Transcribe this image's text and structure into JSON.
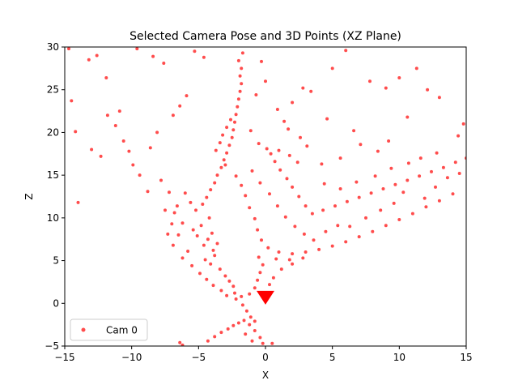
{
  "chart_data": {
    "type": "scatter",
    "title": "Selected Camera Pose and 3D Points (XZ Plane)",
    "xlabel": "X",
    "ylabel": "Z",
    "xlim": [
      -15,
      15
    ],
    "ylim": [
      -5,
      30
    ],
    "xticks": [
      -15,
      -10,
      -5,
      0,
      5,
      10,
      15
    ],
    "yticks": [
      -5,
      0,
      5,
      10,
      15,
      20,
      25,
      30
    ],
    "grid": false,
    "legend_position": "lower-left",
    "series": [
      {
        "name": "Cam 0",
        "color": "#ff0000",
        "marker": "point",
        "points": [
          [
            -4.3,
            7.5
          ],
          [
            -4.0,
            8.2
          ],
          [
            -4.6,
            6.8
          ],
          [
            -3.9,
            6.2
          ],
          [
            -4.8,
            9.1
          ],
          [
            -4.2,
            10.0
          ],
          [
            -3.8,
            5.6
          ],
          [
            -5.1,
            7.9
          ],
          [
            -4.5,
            5.1
          ],
          [
            -3.6,
            7.0
          ],
          [
            -5.4,
            8.6
          ],
          [
            -4.1,
            4.6
          ],
          [
            -3.4,
            4.0
          ],
          [
            -3.0,
            3.2
          ],
          [
            -2.7,
            2.6
          ],
          [
            -2.4,
            2.0
          ],
          [
            -6.2,
            9.4
          ],
          [
            -6.5,
            8.0
          ],
          [
            -5.8,
            6.1
          ],
          [
            -6.8,
            10.6
          ],
          [
            -5.2,
            10.9
          ],
          [
            -4.7,
            11.6
          ],
          [
            -4.4,
            12.4
          ],
          [
            -4.1,
            13.3
          ],
          [
            -3.8,
            14.1
          ],
          [
            -3.6,
            15.0
          ],
          [
            -3.3,
            15.9
          ],
          [
            -3.1,
            16.8
          ],
          [
            -2.9,
            17.6
          ],
          [
            -2.7,
            18.5
          ],
          [
            -2.5,
            19.4
          ],
          [
            -2.4,
            20.3
          ],
          [
            -2.3,
            21.2
          ],
          [
            -2.2,
            22.1
          ],
          [
            -2.1,
            23.0
          ],
          [
            -2.0,
            23.9
          ],
          [
            -1.9,
            24.8
          ],
          [
            -1.8,
            25.7
          ],
          [
            -1.9,
            26.6
          ],
          [
            -1.8,
            27.5
          ],
          [
            -2.0,
            28.4
          ],
          [
            -1.7,
            29.3
          ],
          [
            -2.6,
            21.5
          ],
          [
            -2.9,
            20.6
          ],
          [
            -3.2,
            19.7
          ],
          [
            -3.4,
            18.8
          ],
          [
            -3.7,
            17.9
          ],
          [
            -3.0,
            16.2
          ],
          [
            -2.2,
            14.9
          ],
          [
            -1.8,
            13.8
          ],
          [
            -1.5,
            12.6
          ],
          [
            -1.2,
            11.2
          ],
          [
            -0.8,
            9.9
          ],
          [
            -0.6,
            8.6
          ],
          [
            -0.3,
            7.4
          ],
          [
            0.2,
            6.5
          ],
          [
            1.0,
            6.0
          ],
          [
            2.0,
            5.8
          ],
          [
            3.0,
            6.0
          ],
          [
            4.0,
            6.3
          ],
          [
            5.0,
            6.7
          ],
          [
            6.0,
            7.2
          ],
          [
            7.0,
            7.8
          ],
          [
            8.0,
            8.4
          ],
          [
            9.0,
            9.1
          ],
          [
            10.0,
            9.8
          ],
          [
            11.0,
            10.5
          ],
          [
            12.0,
            11.3
          ],
          [
            13.0,
            12.0
          ],
          [
            14.0,
            12.8
          ],
          [
            -0.5,
            5.4
          ],
          [
            0.8,
            5.2
          ],
          [
            1.8,
            5.1
          ],
          [
            2.8,
            5.3
          ],
          [
            3.5,
            10.5
          ],
          [
            4.3,
            10.9
          ],
          [
            5.2,
            11.4
          ],
          [
            6.1,
            11.9
          ],
          [
            7.0,
            12.4
          ],
          [
            7.9,
            12.9
          ],
          [
            8.8,
            13.4
          ],
          [
            9.7,
            13.9
          ],
          [
            10.6,
            14.4
          ],
          [
            11.5,
            14.9
          ],
          [
            12.4,
            15.4
          ],
          [
            13.3,
            15.9
          ],
          [
            14.2,
            16.5
          ],
          [
            15.0,
            17.0
          ],
          [
            3.0,
            11.4
          ],
          [
            2.5,
            12.5
          ],
          [
            2.0,
            13.6
          ],
          [
            1.6,
            14.6
          ],
          [
            1.1,
            15.6
          ],
          [
            0.7,
            16.6
          ],
          [
            0.4,
            17.5
          ],
          [
            1.0,
            17.9
          ],
          [
            1.8,
            17.3
          ],
          [
            2.4,
            16.5
          ],
          [
            0.1,
            18.1
          ],
          [
            -0.5,
            18.7
          ],
          [
            -1.1,
            20.2
          ],
          [
            -0.2,
            4.5
          ],
          [
            -0.4,
            3.6
          ],
          [
            -0.6,
            2.7
          ],
          [
            -0.8,
            1.8
          ],
          [
            -1.2,
            1.1
          ],
          [
            -1.8,
            0.8
          ],
          [
            -2.3,
            1.2
          ],
          [
            0.3,
            2.2
          ],
          [
            0.6,
            3.0
          ],
          [
            1.2,
            4.0
          ],
          [
            2.0,
            4.6
          ],
          [
            -2.4,
            -2.6
          ],
          [
            -2.0,
            -2.3
          ],
          [
            -1.6,
            -2.0
          ],
          [
            -1.2,
            -2.5
          ],
          [
            -2.8,
            -3.0
          ],
          [
            -3.3,
            -3.4
          ],
          [
            -3.8,
            -3.9
          ],
          [
            -4.3,
            -4.4
          ],
          [
            -0.8,
            -3.2
          ],
          [
            -0.4,
            -4.0
          ],
          [
            -0.2,
            -4.7
          ],
          [
            -6.4,
            -4.6
          ],
          [
            -6.2,
            -4.9
          ],
          [
            -1.5,
            -3.6
          ],
          [
            0.5,
            -4.7
          ],
          [
            -1.0,
            -4.4
          ],
          [
            -14.5,
            23.7
          ],
          [
            -14.2,
            20.1
          ],
          [
            -13.0,
            18.0
          ],
          [
            -12.3,
            17.2
          ],
          [
            -11.8,
            22.0
          ],
          [
            -11.2,
            20.8
          ],
          [
            -10.9,
            22.5
          ],
          [
            -10.6,
            19.0
          ],
          [
            -10.2,
            17.8
          ],
          [
            -9.9,
            16.2
          ],
          [
            -9.4,
            15.0
          ],
          [
            -8.6,
            18.2
          ],
          [
            -8.1,
            20.0
          ],
          [
            -7.8,
            14.4
          ],
          [
            -7.2,
            13.0
          ],
          [
            -6.9,
            22.0
          ],
          [
            -6.4,
            23.1
          ],
          [
            -5.9,
            24.3
          ],
          [
            -14.7,
            29.8
          ],
          [
            -13.2,
            28.5
          ],
          [
            -12.6,
            29.0
          ],
          [
            -11.9,
            26.4
          ],
          [
            -9.6,
            29.8
          ],
          [
            -8.4,
            28.9
          ],
          [
            -7.6,
            28.1
          ],
          [
            -5.3,
            29.5
          ],
          [
            -4.6,
            28.8
          ],
          [
            -14.0,
            11.8
          ],
          [
            -8.8,
            13.1
          ],
          [
            -7.5,
            10.9
          ],
          [
            5.0,
            27.5
          ],
          [
            6.0,
            29.6
          ],
          [
            7.8,
            26.0
          ],
          [
            9.0,
            25.2
          ],
          [
            10.0,
            26.4
          ],
          [
            11.3,
            27.5
          ],
          [
            12.1,
            25.0
          ],
          [
            13.0,
            24.1
          ],
          [
            14.8,
            21.0
          ],
          [
            14.4,
            19.6
          ],
          [
            10.6,
            21.8
          ],
          [
            9.2,
            19.0
          ],
          [
            8.4,
            17.8
          ],
          [
            7.1,
            18.6
          ],
          [
            6.6,
            20.2
          ],
          [
            5.6,
            17.0
          ],
          [
            4.6,
            21.6
          ],
          [
            3.4,
            24.8
          ],
          [
            2.8,
            25.2
          ],
          [
            2.0,
            23.5
          ],
          [
            1.4,
            21.3
          ],
          [
            -0.7,
            24.4
          ],
          [
            -0.3,
            28.3
          ],
          [
            0.0,
            26.0
          ],
          [
            0.9,
            22.7
          ],
          [
            1.7,
            20.4
          ],
          [
            2.6,
            19.4
          ],
          [
            3.1,
            18.4
          ],
          [
            4.2,
            16.3
          ],
          [
            4.4,
            14.0
          ],
          [
            5.6,
            13.4
          ],
          [
            6.3,
            9.0
          ],
          [
            7.5,
            10.0
          ],
          [
            8.6,
            10.9
          ],
          [
            9.6,
            11.7
          ],
          [
            10.3,
            13.0
          ],
          [
            11.9,
            12.3
          ],
          [
            12.7,
            13.6
          ],
          [
            13.6,
            14.7
          ],
          [
            14.5,
            15.2
          ],
          [
            6.8,
            14.2
          ],
          [
            8.2,
            14.9
          ],
          [
            9.4,
            15.8
          ],
          [
            10.7,
            16.4
          ],
          [
            11.6,
            17.0
          ],
          [
            12.8,
            17.6
          ],
          [
            -1.0,
            15.5
          ],
          [
            -0.4,
            14.1
          ],
          [
            0.3,
            12.8
          ],
          [
            0.9,
            11.4
          ],
          [
            1.5,
            10.1
          ],
          [
            2.2,
            9.0
          ],
          [
            2.9,
            8.1
          ],
          [
            3.6,
            7.4
          ],
          [
            4.5,
            8.4
          ],
          [
            5.4,
            9.1
          ],
          [
            -5.6,
            11.8
          ],
          [
            -6.0,
            12.9
          ],
          [
            -6.6,
            11.4
          ],
          [
            -7.0,
            9.3
          ],
          [
            -7.3,
            8.1
          ],
          [
            -6.9,
            6.8
          ],
          [
            -6.2,
            5.3
          ],
          [
            -5.5,
            4.4
          ],
          [
            -4.9,
            3.5
          ],
          [
            -4.4,
            2.8
          ],
          [
            -3.9,
            2.1
          ],
          [
            -3.3,
            1.5
          ],
          [
            -2.9,
            0.9
          ],
          [
            -2.2,
            0.5
          ],
          [
            -1.7,
            -0.2
          ],
          [
            -1.4,
            -0.9
          ],
          [
            -1.1,
            -1.6
          ],
          [
            -0.8,
            -2.1
          ]
        ]
      }
    ],
    "camera_pose": {
      "x": 0.0,
      "z": 0.8,
      "marker": "triangle-down",
      "color": "#ff0000"
    }
  }
}
